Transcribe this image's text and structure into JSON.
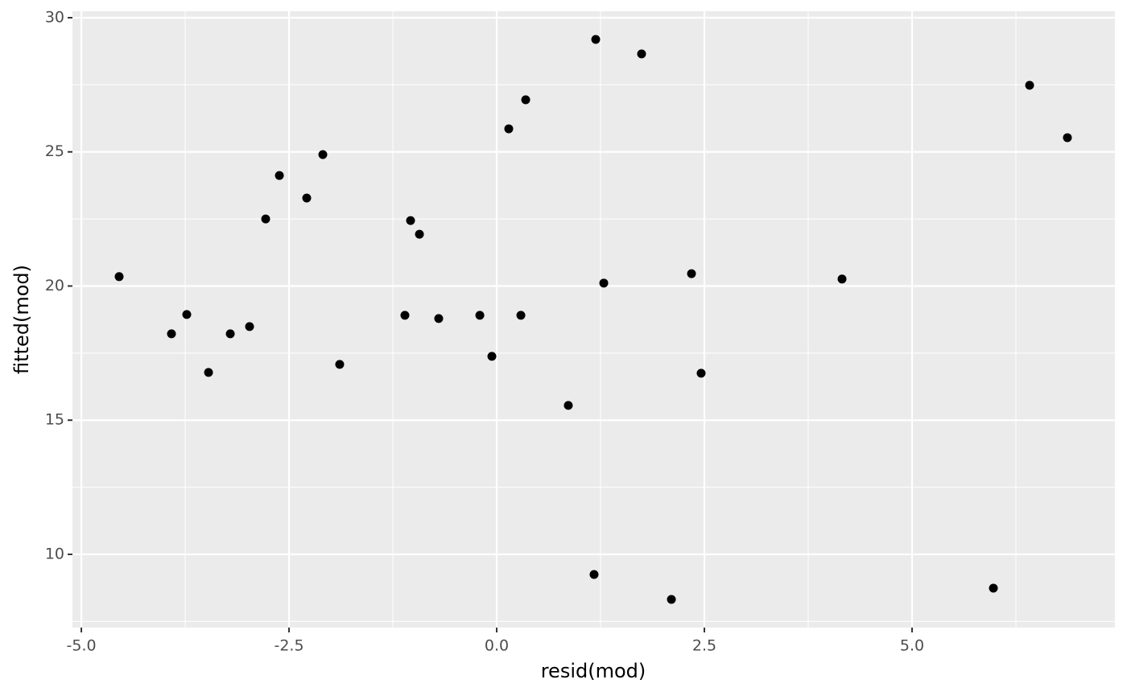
{
  "chart_data": {
    "type": "scatter",
    "x_label": "resid(mod)",
    "y_label": "fitted(mod)",
    "x": [
      -4.545,
      -3.915,
      -3.731,
      -3.469,
      -3.207,
      -2.975,
      -2.781,
      -2.616,
      -2.287,
      -2.093,
      -1.89,
      -1.105,
      -1.037,
      -0.93,
      -0.698,
      -0.203,
      -0.058,
      0.145,
      0.291,
      0.349,
      0.862,
      1.172,
      1.192,
      1.289,
      1.744,
      2.103,
      2.345,
      2.461,
      4.157,
      5.979,
      6.415,
      6.87
    ],
    "values": [
      20.35,
      18.22,
      18.94,
      16.78,
      18.22,
      18.49,
      22.5,
      24.12,
      23.28,
      24.9,
      17.08,
      18.91,
      22.44,
      21.93,
      18.79,
      18.91,
      17.38,
      25.86,
      18.91,
      26.94,
      15.55,
      9.25,
      29.19,
      20.11,
      28.65,
      8.32,
      20.46,
      16.75,
      20.26,
      8.74,
      27.48,
      25.53
    ],
    "color": "#000000",
    "xlim": [
      -5.107,
      7.442
    ],
    "ylim": [
      7.27,
      30.24
    ],
    "xticks": [
      {
        "value": -5,
        "label": "-5.0"
      },
      {
        "value": -2.5,
        "label": "-2.5"
      },
      {
        "value": 0,
        "label": "0.0"
      },
      {
        "value": 2.5,
        "label": "2.5"
      },
      {
        "value": 5,
        "label": "5.0"
      }
    ],
    "yticks": [
      10,
      15,
      20,
      25,
      30
    ],
    "grid": true
  }
}
